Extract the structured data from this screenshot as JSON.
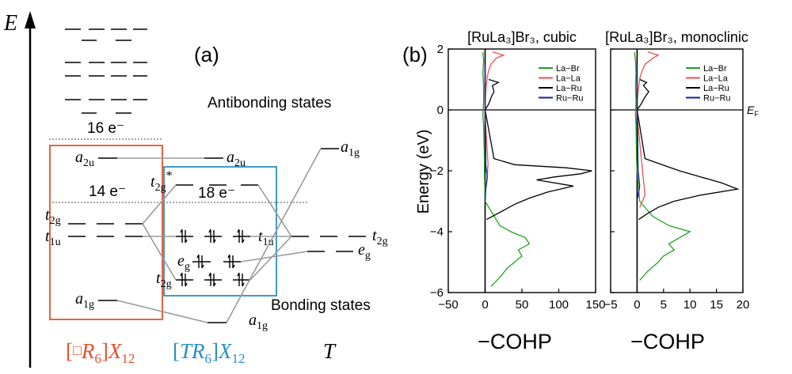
{
  "panel_a": {
    "label": "(a)",
    "axis_label": "E",
    "antibonding_label": "Antibonding states",
    "bonding_label": "Bonding states",
    "count_16": "16 e⁻",
    "count_14": "14 e⁻",
    "count_18": "18 e⁻",
    "left_levels": {
      "a2u": {
        "main": "a",
        "sub": "2u"
      },
      "t2g": {
        "main": "t",
        "sub": "2g"
      },
      "t1u": {
        "main": "t",
        "sub": "1u"
      },
      "a1g": {
        "main": "a",
        "sub": "1g"
      }
    },
    "center_levels": {
      "a2u": {
        "main": "a",
        "sub": "2u"
      },
      "t2g_star": {
        "main": "t",
        "sub": "2g",
        "sup": "*"
      },
      "t1u": {
        "main": "t",
        "sub": "1u"
      },
      "eg": {
        "main": "e",
        "sub": "g"
      },
      "t2g": {
        "main": "t",
        "sub": "2g"
      },
      "a1g": {
        "main": "a",
        "sub": "1g"
      }
    },
    "right_levels": {
      "a1g": {
        "main": "a",
        "sub": "1g"
      },
      "t2g": {
        "main": "t",
        "sub": "2g"
      },
      "eg": {
        "main": "e",
        "sub": "g"
      }
    },
    "fragments": {
      "left": {
        "open": "[",
        "box": "□",
        "R": "R",
        "R_sub": "6",
        "close": "]",
        "X": "X",
        "X_sub": "12"
      },
      "center": {
        "open": "[",
        "T": "TR",
        "T_sub": "6",
        "close": "]",
        "X": "X",
        "X_sub": "12"
      },
      "right": {
        "label": "T"
      }
    },
    "colors": {
      "left_box": "#e8502a",
      "center_box": "#2a8fc8",
      "connector": "#9a9a9a",
      "dotted": "#888888"
    }
  },
  "panel_b": {
    "label": "(b)",
    "ylabel": "Energy (eV)",
    "xlabel": "−COHP",
    "fermi_label": "E",
    "fermi_sub": "F",
    "colors": {
      "La-Br": "#1fa31f",
      "La-La": "#f05050",
      "La-Ru": "#000000",
      "Ru-Ru": "#1a1aa0"
    }
  },
  "chart_data": [
    {
      "type": "line",
      "title": "[RuLa₃]Br₃, cubic",
      "xlabel": "−COHP",
      "ylabel": "Energy (eV)",
      "xlim": [
        -50,
        150
      ],
      "ylim": [
        -6,
        2
      ],
      "xticks": [
        "−50",
        "0",
        "50",
        "100",
        "150"
      ],
      "yticks": [
        "−6",
        "−4",
        "−2",
        "0",
        "2"
      ],
      "legend_position": "top-right",
      "series": [
        {
          "name": "La−Br",
          "color": "#1fa31f",
          "y": [
            1.9,
            1.6,
            1.2,
            0.8,
            0.3,
            -0.2,
            -0.5,
            -1.6,
            -2.0,
            -3.0,
            -3.8,
            -4.0,
            -4.2,
            -4.4,
            -4.6,
            -4.8,
            -5.0,
            -5.2,
            -5.5,
            -5.8
          ],
          "x": [
            -3,
            -2,
            -3,
            -2,
            -2,
            -3,
            -2,
            -1,
            -1,
            0,
            20,
            35,
            55,
            60,
            45,
            50,
            40,
            30,
            20,
            8
          ]
        },
        {
          "name": "La−La",
          "color": "#f05050",
          "y": [
            1.9,
            1.8,
            1.7,
            1.5,
            1.3,
            1.1,
            0.9,
            0.6,
            0.2,
            -0.2,
            -1.8,
            -2.4
          ],
          "x": [
            10,
            25,
            15,
            8,
            5,
            3,
            2,
            1,
            0,
            0,
            4,
            2
          ]
        },
        {
          "name": "La−Ru",
          "color": "#000000",
          "y": [
            1.0,
            0.9,
            0.8,
            0.6,
            0.4,
            0.2,
            0.0,
            -1.6,
            -1.8,
            -1.9,
            -2.0,
            -2.1,
            -2.2,
            -2.3,
            -2.5,
            -2.7,
            -2.9,
            -3.1,
            -3.3,
            -3.6
          ],
          "x": [
            5,
            18,
            10,
            12,
            8,
            5,
            0,
            12,
            40,
            110,
            145,
            130,
            95,
            70,
            120,
            85,
            60,
            40,
            25,
            2
          ]
        },
        {
          "name": "Ru−Ru",
          "color": "#1a1aa0",
          "y": [
            1.5,
            0.5,
            -1.8,
            -2.2,
            -2.6,
            -3.0
          ],
          "x": [
            0,
            0,
            1,
            3,
            1,
            0
          ]
        }
      ]
    },
    {
      "type": "line",
      "title": "[RuLa₃]Br₃, monoclinic",
      "xlabel": "−COHP",
      "ylabel": "Energy (eV)",
      "xlim": [
        -5,
        20
      ],
      "ylim": [
        -6,
        2
      ],
      "xticks": [
        "−5",
        "0",
        "5",
        "10",
        "15",
        "20"
      ],
      "yticks": [
        "−6",
        "−4",
        "−2",
        "0",
        "2"
      ],
      "legend_position": "top-right",
      "series": [
        {
          "name": "La−Br",
          "color": "#1fa31f",
          "y": [
            1.9,
            1.6,
            1.2,
            0.8,
            0.3,
            -0.2,
            -0.5,
            -1.6,
            -2.0,
            -3.0,
            -3.5,
            -3.8,
            -4.0,
            -4.2,
            -4.4,
            -4.6,
            -4.8,
            -5.0,
            -5.3,
            -5.6
          ],
          "x": [
            -0.5,
            -0.3,
            -0.2,
            -0.3,
            -0.2,
            -0.3,
            -0.2,
            -0.1,
            0,
            0.5,
            3,
            6,
            10,
            8,
            6,
            7,
            5,
            4,
            2,
            0.5
          ]
        },
        {
          "name": "La−La",
          "color": "#f05050",
          "y": [
            1.9,
            1.8,
            1.7,
            1.5,
            1.3,
            1.1,
            0.9,
            0.6,
            0.2,
            -0.2,
            -2.8,
            -3.2
          ],
          "x": [
            2,
            4,
            3,
            1.5,
            1,
            0.6,
            0.4,
            0.2,
            0,
            0,
            1.5,
            0.5
          ]
        },
        {
          "name": "La−Ru",
          "color": "#000000",
          "y": [
            1.0,
            0.9,
            0.8,
            0.6,
            0.4,
            0.2,
            0.0,
            -1.6,
            -2.0,
            -2.4,
            -2.6,
            -2.8,
            -3.0,
            -3.2,
            -3.4,
            -3.6
          ],
          "x": [
            0.5,
            1.8,
            1.2,
            2.2,
            1.4,
            0.8,
            0,
            1.5,
            8,
            16,
            19,
            12,
            7,
            4,
            2,
            0.3
          ]
        },
        {
          "name": "Ru−Ru",
          "color": "#1a1aa0",
          "y": [
            1.5,
            0.5,
            -2.0,
            -2.5,
            -2.9
          ],
          "x": [
            0,
            0,
            0.2,
            0.5,
            0.1
          ]
        }
      ]
    }
  ]
}
